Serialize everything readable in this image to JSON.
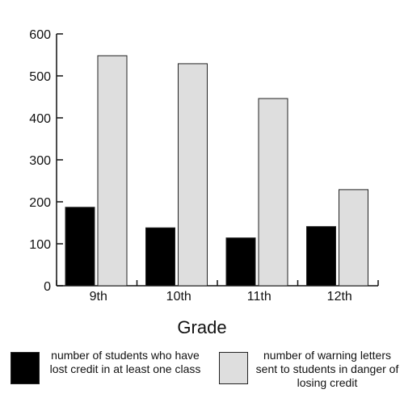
{
  "chart_data": {
    "type": "bar",
    "title": "",
    "xlabel": "Grade",
    "ylabel": "",
    "categories": [
      "9th",
      "10th",
      "11th",
      "12th"
    ],
    "series": [
      {
        "name": "number of students who have lost credit in at least one class",
        "color": "#000000",
        "values": [
          187,
          138,
          114,
          141
        ]
      },
      {
        "name": "number of warning letters sent to students in danger of losing credit",
        "color": "#dedede",
        "values": [
          548,
          529,
          446,
          229
        ]
      }
    ],
    "ylim": [
      0,
      600
    ],
    "yticks": [
      "0",
      "100",
      "200",
      "300",
      "400",
      "500",
      "600"
    ],
    "grid": false,
    "legend_position": "bottom"
  }
}
